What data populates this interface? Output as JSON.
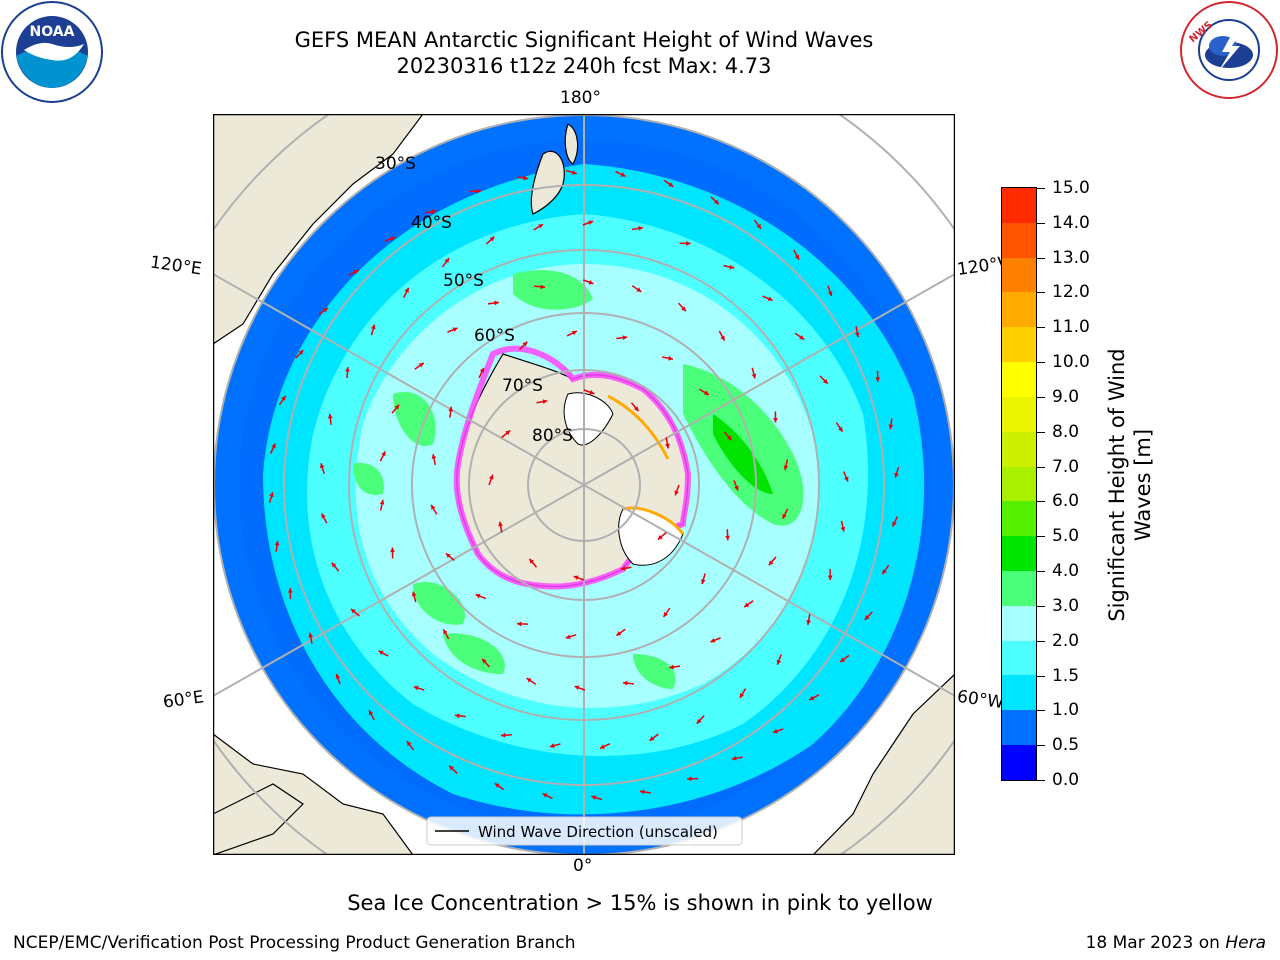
{
  "title": {
    "line1": "GEFS MEAN Antarctic Significant Height of Wind Waves",
    "line2": "20230316 t12z 240h fcst   Max: 4.73"
  },
  "logos": {
    "left": "noaa-logo",
    "left_text": "NOAA",
    "right": "national-weather-service-logo",
    "right_text": "NATIONAL WEATHER SERVICE"
  },
  "map": {
    "projection": "south-polar-stereographic",
    "longitude_labels": {
      "top": "180°",
      "bottom": "0°",
      "upper_left": "120°E",
      "lower_left": "60°E",
      "upper_right": "120°W",
      "lower_right": "60°W"
    },
    "latitude_labels": [
      "30°S",
      "40°S",
      "50°S",
      "60°S",
      "70°S",
      "80°S"
    ],
    "legend": "Wind Wave Direction (unscaled)",
    "colors": {
      "land": "#ede9d9",
      "arrow": "#e8000b",
      "grid": "#b0b0b0"
    }
  },
  "colorbar": {
    "label": "Significant Height of Wind Waves [m]",
    "ticks": [
      "0.0",
      "0.5",
      "1.0",
      "1.5",
      "2.0",
      "3.0",
      "4.0",
      "5.0",
      "6.0",
      "7.0",
      "8.0",
      "9.0",
      "10.0",
      "11.0",
      "12.0",
      "13.0",
      "14.0",
      "15.0"
    ],
    "colors": [
      "#0000ff",
      "#0072ff",
      "#00e5ff",
      "#4dffff",
      "#a8ffff",
      "#4cff7a",
      "#00e400",
      "#55f000",
      "#a8f000",
      "#ccf000",
      "#ebf500",
      "#ffff00",
      "#ffd000",
      "#ffaa00",
      "#ff8000",
      "#ff5500",
      "#ff2a00"
    ]
  },
  "ice_note": "Sea Ice Concentration > 15% is shown in pink to yellow",
  "footer": {
    "left": "NCEP/EMC/Verification Post Processing Product Generation Branch",
    "date": "18 Mar 2023 on ",
    "machine": "Hera"
  }
}
